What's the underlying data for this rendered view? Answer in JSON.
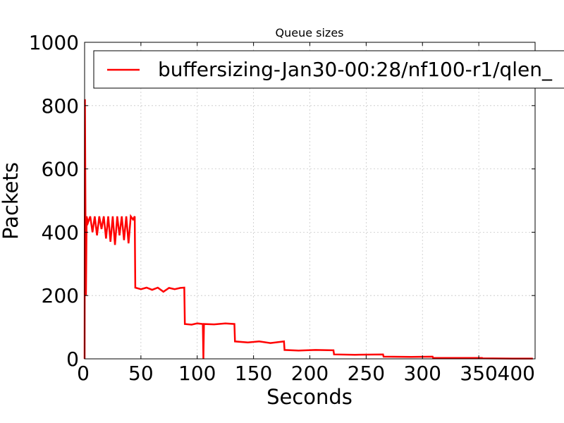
{
  "chart_data": {
    "type": "line",
    "title": "Queue sizes",
    "xlabel": "Seconds",
    "ylabel": "Packets",
    "xlim": [
      0,
      400
    ],
    "ylim": [
      0,
      1000
    ],
    "xticks": [
      0,
      50,
      100,
      150,
      200,
      250,
      300,
      350,
      400
    ],
    "yticks": [
      0,
      200,
      400,
      600,
      800,
      1000
    ],
    "grid": true,
    "legend_position": "top-right",
    "series": [
      {
        "name": "buffersizing-Jan30-00:28/nf100-r1/qlen_",
        "color": "#ff0000",
        "points": [
          [
            0,
            0
          ],
          [
            0.3,
            820
          ],
          [
            0.8,
            420
          ],
          [
            1.2,
            200
          ],
          [
            1.8,
            450
          ],
          [
            3,
            430
          ],
          [
            5,
            450
          ],
          [
            7,
            400
          ],
          [
            9,
            450
          ],
          [
            11,
            390
          ],
          [
            13,
            450
          ],
          [
            15,
            410
          ],
          [
            17,
            450
          ],
          [
            19,
            380
          ],
          [
            21,
            450
          ],
          [
            23,
            370
          ],
          [
            25,
            450
          ],
          [
            27,
            360
          ],
          [
            29,
            450
          ],
          [
            31,
            390
          ],
          [
            33,
            450
          ],
          [
            35,
            375
          ],
          [
            37,
            450
          ],
          [
            39,
            365
          ],
          [
            41,
            450
          ],
          [
            43,
            440
          ],
          [
            44.5,
            450
          ],
          [
            45,
            225
          ],
          [
            50,
            220
          ],
          [
            55,
            225
          ],
          [
            60,
            218
          ],
          [
            65,
            225
          ],
          [
            70,
            212
          ],
          [
            75,
            224
          ],
          [
            80,
            220
          ],
          [
            85,
            224
          ],
          [
            88.5,
            225
          ],
          [
            89,
            110
          ],
          [
            95,
            108
          ],
          [
            100,
            112
          ],
          [
            105,
            110
          ],
          [
            105.5,
            0
          ],
          [
            106,
            110
          ],
          [
            115,
            109
          ],
          [
            125,
            112
          ],
          [
            133,
            110
          ],
          [
            133.5,
            55
          ],
          [
            145,
            52
          ],
          [
            155,
            55
          ],
          [
            165,
            50
          ],
          [
            177,
            55
          ],
          [
            177.5,
            28
          ],
          [
            190,
            26
          ],
          [
            205,
            28
          ],
          [
            221,
            27
          ],
          [
            221.5,
            14
          ],
          [
            240,
            13
          ],
          [
            265,
            14
          ],
          [
            265.5,
            7
          ],
          [
            290,
            6
          ],
          [
            309,
            7
          ],
          [
            309.5,
            3
          ],
          [
            340,
            3
          ],
          [
            353,
            3
          ],
          [
            353.5,
            1.5
          ],
          [
            380,
            1
          ],
          [
            398,
            1
          ]
        ]
      }
    ]
  }
}
